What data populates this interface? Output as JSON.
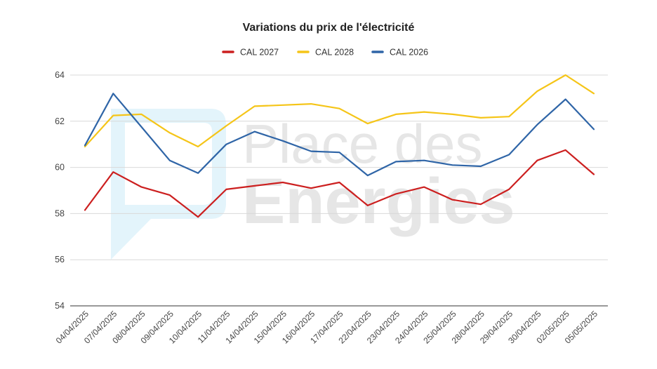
{
  "chart_data": {
    "type": "line",
    "title": "Variations du prix de l'électricité",
    "xlabel": "",
    "ylabel": "",
    "ylim": [
      54,
      64
    ],
    "yticks": [
      54,
      56,
      58,
      60,
      62,
      64
    ],
    "grid": true,
    "legend_position": "top-center",
    "categories": [
      "04/04/2025",
      "07/04/2025",
      "08/04/2025",
      "09/04/2025",
      "10/04/2025",
      "11/04/2025",
      "14/04/2025",
      "15/04/2025",
      "16/04/2025",
      "17/04/2025",
      "22/04/2025",
      "23/04/2025",
      "24/04/2025",
      "25/04/2025",
      "28/04/2025",
      "29/04/2025",
      "30/04/2025",
      "02/05/2025",
      "05/05/2025"
    ],
    "series": [
      {
        "name": "CAL 2027",
        "color": "#cc1f1f",
        "values": [
          58.15,
          59.8,
          59.15,
          58.8,
          57.85,
          59.05,
          59.2,
          59.35,
          59.1,
          59.35,
          58.35,
          58.85,
          59.15,
          58.6,
          58.4,
          59.05,
          60.3,
          60.75,
          59.7
        ]
      },
      {
        "name": "CAL 2028",
        "color": "#f5c518",
        "values": [
          60.9,
          62.25,
          62.3,
          61.5,
          60.9,
          61.8,
          62.65,
          62.7,
          62.75,
          62.55,
          61.9,
          62.3,
          62.4,
          62.3,
          62.15,
          62.2,
          63.3,
          64.0,
          63.2
        ]
      },
      {
        "name": "CAL 2026",
        "color": "#2f65a7",
        "values": [
          60.95,
          63.2,
          61.75,
          60.3,
          59.75,
          61.0,
          61.55,
          61.15,
          60.7,
          60.65,
          59.65,
          60.25,
          60.3,
          60.1,
          60.05,
          60.55,
          61.85,
          62.95,
          61.65
        ]
      }
    ],
    "watermark": {
      "line1": "Place des",
      "line2": "Energies",
      "logo_color": "#e3f4fb"
    }
  }
}
